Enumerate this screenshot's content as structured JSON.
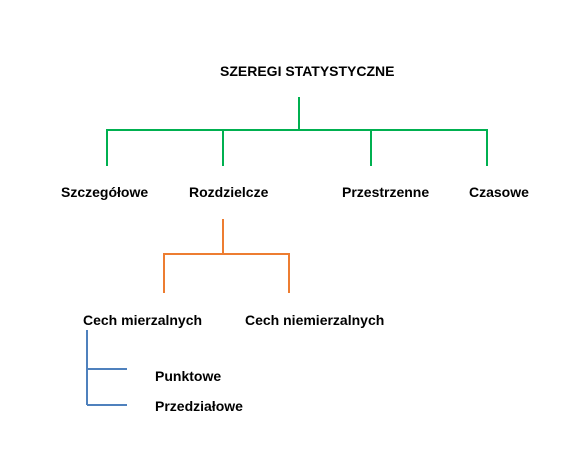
{
  "diagram": {
    "root": "SZEREGI STATYSTYCZNE",
    "level1": [
      "Szczegółowe",
      "Rozdzielcze",
      "Przestrzenne",
      "Czasowe"
    ],
    "level2": [
      "Cech mierzalnych",
      "Cech niemierzalnych"
    ],
    "level3": [
      "Punktowe",
      "Przedziałowe"
    ]
  },
  "colors": {
    "root_connector": "#00b050",
    "rozdzielcze_connector": "#ed7d31",
    "mierzalnych_connector": "#4f81bd",
    "text": "#000000"
  }
}
